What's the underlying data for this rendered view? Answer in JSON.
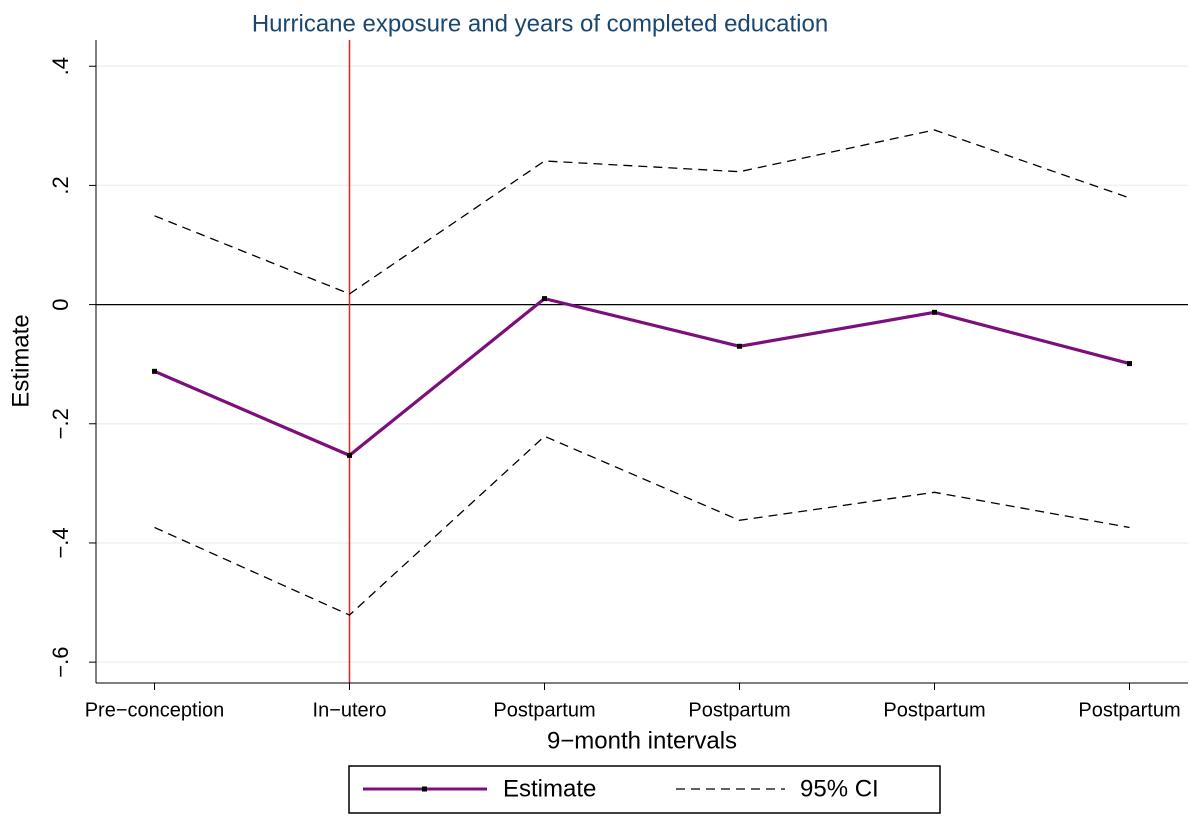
{
  "chart_data": {
    "type": "line",
    "title": "Hurricane exposure and years of completed education",
    "xlabel": "9−month intervals",
    "ylabel": "Estimate",
    "categories": [
      "Pre−conception",
      "In−utero",
      "Postpartum",
      "Postpartum",
      "Postpartum",
      "Postpartum"
    ],
    "series": [
      {
        "name": "Estimate",
        "color": "#7d0f7d",
        "values": [
          -0.112,
          -0.253,
          0.01,
          -0.07,
          -0.013,
          -0.099
        ]
      }
    ],
    "ci": {
      "name": "95% CI",
      "color": "#000000",
      "upper": [
        0.149,
        0.018,
        0.241,
        0.223,
        0.293,
        0.179
      ],
      "lower": [
        -0.374,
        -0.521,
        -0.221,
        -0.362,
        -0.315,
        -0.374
      ]
    },
    "ylim": [
      -0.635,
      0.444
    ],
    "yticks": [
      {
        "value": -0.6,
        "label": "−.6"
      },
      {
        "value": -0.4,
        "label": "−.4"
      },
      {
        "value": -0.2,
        "label": "−.2"
      },
      0,
      {
        "value": 0.2,
        "label": ".2"
      },
      {
        "value": 0.4,
        "label": ".4"
      }
    ],
    "grid": true,
    "yline": 0,
    "xline": {
      "category": "In−utero",
      "color": "#e8221b"
    },
    "legend": "bottom"
  }
}
